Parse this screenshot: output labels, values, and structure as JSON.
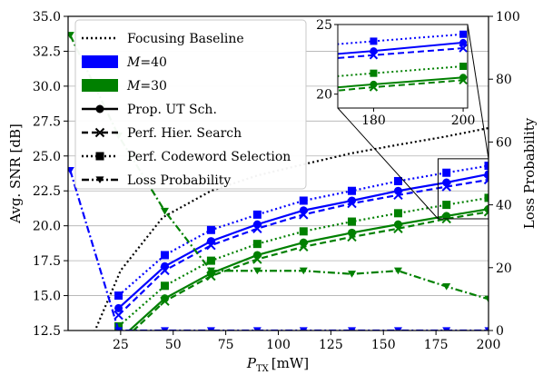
{
  "chart_data": {
    "type": "line",
    "xlabel": "P",
    "xlabel_sub": "TX",
    "xlabel_unit": "[mW]",
    "ylabel": "Avg. SNR [dB]",
    "y2label": "Loss Probability",
    "xlim": [
      0,
      200
    ],
    "ylim": [
      12.5,
      35.0
    ],
    "y2lim": [
      0,
      100
    ],
    "x_ticks": [
      25,
      50,
      75,
      100,
      125,
      150,
      175,
      200
    ],
    "y_ticks": [
      "12.5",
      "15.0",
      "17.5",
      "20.0",
      "22.5",
      "25.0",
      "27.5",
      "30.0",
      "32.5",
      "35.0"
    ],
    "y2_ticks": [
      0,
      20,
      40,
      60,
      80,
      100
    ],
    "grid": true,
    "legend_position": "top-left",
    "legend": [
      {
        "label": "Focusing Baseline",
        "kind": "style",
        "dash": "dotted",
        "marker": "none",
        "color": "#000000"
      },
      {
        "label": "M=40",
        "kind": "color",
        "color": "#0000ff"
      },
      {
        "label": "M=30",
        "kind": "color",
        "color": "#008000"
      },
      {
        "label": "Prop. UT Sch.",
        "kind": "style",
        "dash": "solid",
        "marker": "circle",
        "color": "#000000"
      },
      {
        "label": "Perf. Hier. Search",
        "kind": "style",
        "dash": "dashed",
        "marker": "x",
        "color": "#000000"
      },
      {
        "label": "Perf. Codeword Selection",
        "kind": "style",
        "dash": "dotted",
        "marker": "square",
        "color": "#000000"
      },
      {
        "label": "Loss Probability",
        "kind": "style",
        "dash": "dashdot",
        "marker": "triangle-down",
        "color": "#000000"
      }
    ],
    "series": [
      {
        "group": "baseline",
        "color": "#000000",
        "dash": "dotted",
        "marker": "none",
        "axis": "left",
        "x": [
          10,
          25,
          45,
          68,
          90,
          112,
          135,
          157,
          180,
          200
        ],
        "y": [
          11.5,
          16.8,
          20.6,
          22.5,
          23.6,
          24.4,
          25.2,
          25.8,
          26.4,
          27.0
        ]
      },
      {
        "group": "M40-prop",
        "color": "#0000ff",
        "dash": "solid",
        "marker": "circle",
        "axis": "left",
        "x": [
          24,
          46,
          68,
          90,
          112,
          135,
          157,
          180,
          200
        ],
        "y": [
          14.1,
          17.1,
          18.9,
          20.1,
          21.1,
          21.8,
          22.5,
          23.1,
          23.7
        ]
      },
      {
        "group": "M40-hier",
        "color": "#0000ff",
        "dash": "dashed",
        "marker": "x",
        "axis": "left",
        "x": [
          24,
          46,
          68,
          90,
          112,
          135,
          157,
          180,
          200
        ],
        "y": [
          13.6,
          16.8,
          18.6,
          19.8,
          20.8,
          21.6,
          22.2,
          22.8,
          23.3
        ]
      },
      {
        "group": "M40-code",
        "color": "#0000ff",
        "dash": "dotted",
        "marker": "square",
        "axis": "left",
        "x": [
          24,
          46,
          68,
          90,
          112,
          135,
          157,
          180,
          200
        ],
        "y": [
          15.0,
          17.9,
          19.7,
          20.8,
          21.8,
          22.5,
          23.2,
          23.8,
          24.3
        ]
      },
      {
        "group": "M30-prop",
        "color": "#008000",
        "dash": "solid",
        "marker": "circle",
        "axis": "left",
        "x": [
          24,
          46,
          68,
          90,
          112,
          135,
          157,
          180,
          200
        ],
        "y": [
          11.8,
          14.8,
          16.6,
          17.9,
          18.8,
          19.5,
          20.1,
          20.7,
          21.2
        ]
      },
      {
        "group": "M30-hier",
        "color": "#008000",
        "dash": "dashed",
        "marker": "x",
        "axis": "left",
        "x": [
          24,
          46,
          68,
          90,
          112,
          135,
          157,
          180,
          200
        ],
        "y": [
          11.5,
          14.6,
          16.4,
          17.6,
          18.5,
          19.2,
          19.8,
          20.5,
          21.0
        ]
      },
      {
        "group": "M30-code",
        "color": "#008000",
        "dash": "dotted",
        "marker": "square",
        "axis": "left",
        "x": [
          24,
          46,
          68,
          90,
          112,
          135,
          157,
          180,
          200
        ],
        "y": [
          12.8,
          15.7,
          17.5,
          18.7,
          19.6,
          20.3,
          20.9,
          21.5,
          22.0
        ]
      },
      {
        "group": "M40-loss",
        "color": "#0000ff",
        "dash": "dashdot",
        "marker": "triangle-down",
        "axis": "right",
        "x": [
          1,
          24,
          46,
          68,
          90,
          112,
          135,
          157,
          180,
          200
        ],
        "y": [
          51,
          0,
          0,
          0,
          0,
          0,
          0,
          0,
          0,
          0
        ]
      },
      {
        "group": "M30-loss",
        "color": "#008000",
        "dash": "dashdot",
        "marker": "triangle-down",
        "axis": "right",
        "x": [
          1,
          24,
          46,
          68,
          90,
          112,
          135,
          157,
          180,
          200
        ],
        "y": [
          94,
          62,
          38,
          19,
          19,
          19,
          18,
          19,
          14,
          10
        ]
      }
    ],
    "inset": {
      "xlim": [
        172,
        201
      ],
      "ylim": [
        19.0,
        25.0
      ],
      "x_ticks": [
        180,
        200
      ],
      "y_ticks": [
        20,
        25
      ],
      "source_region": {
        "x": [
          176,
          201
        ],
        "y": [
          20.5,
          24.8
        ]
      }
    }
  }
}
